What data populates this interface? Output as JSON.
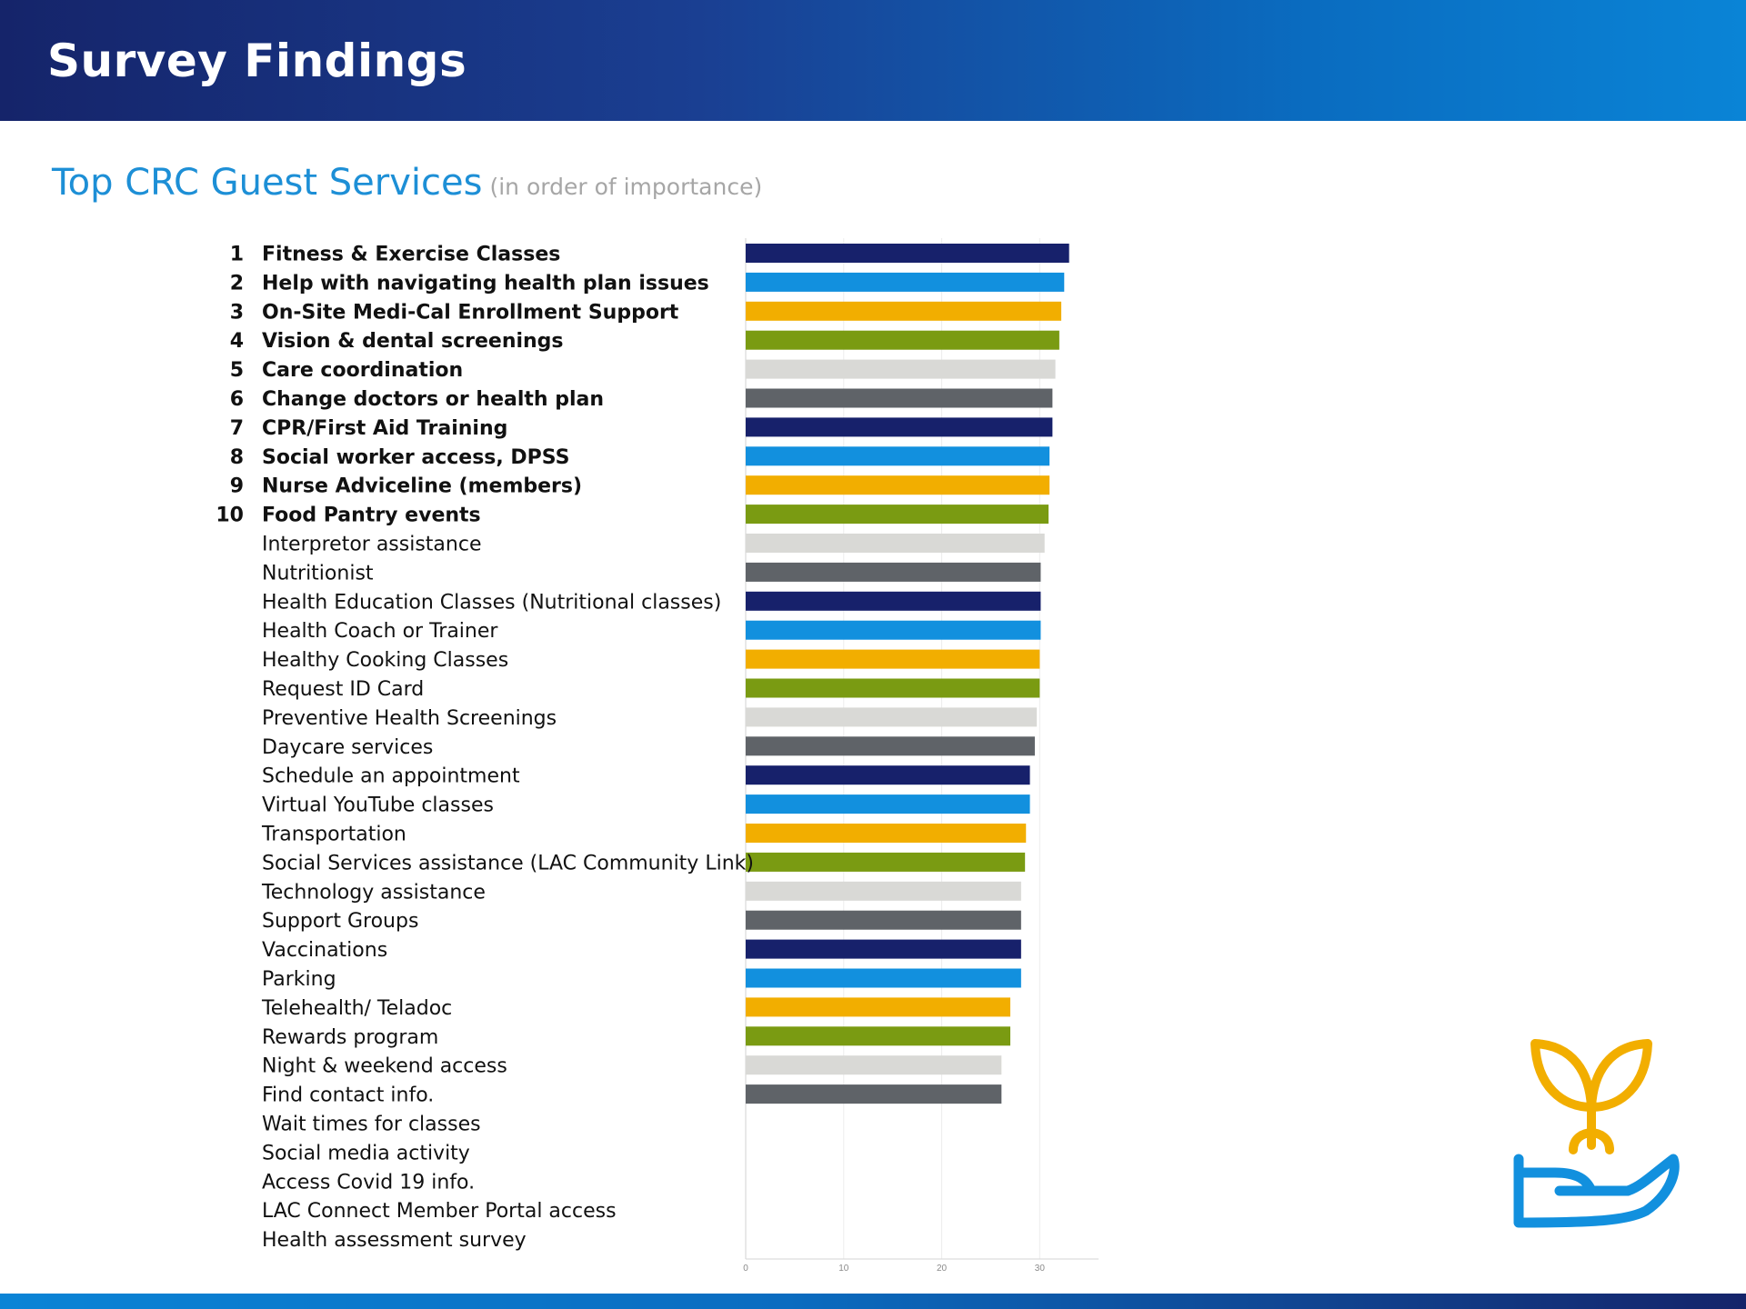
{
  "header": {
    "title": "Survey Findings"
  },
  "subtitle": {
    "main": "Top CRC Guest Services",
    "note": "(in order of importance)"
  },
  "icon": {
    "name": "hand-with-plant-icon"
  },
  "colors": {
    "header_start": "#15246a",
    "header_end": "#0a84d6",
    "subtitle": "#1d8fd6",
    "bar_palette": [
      "#17216b",
      "#1290de",
      "#f2ae00",
      "#7a9b12",
      "#d9d9d6",
      "#5f6368"
    ],
    "icon_blue": "#1290de",
    "icon_gold": "#f2ae00"
  },
  "chart_data": {
    "type": "bar",
    "orientation": "horizontal",
    "categories": [
      "Fitness & Exercise Classes",
      "Help with navigating health plan issues",
      "On-Site Medi-Cal Enrollment Support",
      "Vision & dental screenings",
      "Care coordination",
      "Change doctors or health plan",
      "CPR/First Aid Training",
      "Social worker access, DPSS",
      "Nurse Adviceline (members)",
      "Food Pantry events",
      "Interpretor assistance",
      "Nutritionist",
      "Health Education Classes (Nutritional classes)",
      "Health Coach or Trainer",
      "Healthy Cooking Classes",
      "Request ID Card",
      "Preventive Health Screenings",
      "Daycare services",
      "Schedule an appointment",
      "Virtual YouTube classes",
      "Transportation",
      "Social Services assistance (LAC Community Link)",
      "Technology assistance",
      "Support Groups",
      "Vaccinations",
      "Parking",
      "Telehealth/ Teladoc",
      "Rewards program",
      "Night & weekend access",
      "Find contact info.",
      "Wait times for classes",
      "Social media activity",
      "Access Covid 19 info.",
      "LAC Connect Member Portal access",
      "Health assessment survey"
    ],
    "ranks": [
      "1",
      "2",
      "3",
      "4",
      "5",
      "6",
      "7",
      "8",
      "9",
      "10"
    ],
    "values": [
      33,
      32.5,
      32.2,
      32,
      31.6,
      31.3,
      31.3,
      31,
      31,
      30.9,
      30.5,
      30.1,
      30.1,
      30.1,
      30,
      30,
      29.7,
      29.5,
      29,
      29,
      28.6,
      28.5,
      28.1,
      28.1,
      28.1,
      28.1,
      27,
      27,
      26.1,
      26.1,
      null,
      null,
      null,
      null,
      null
    ],
    "xlim": [
      0,
      36
    ],
    "xticks": [
      0,
      10,
      20,
      30
    ],
    "xlabel": "",
    "ylabel": "",
    "title": "",
    "grid": "vertical",
    "legend": "none"
  }
}
